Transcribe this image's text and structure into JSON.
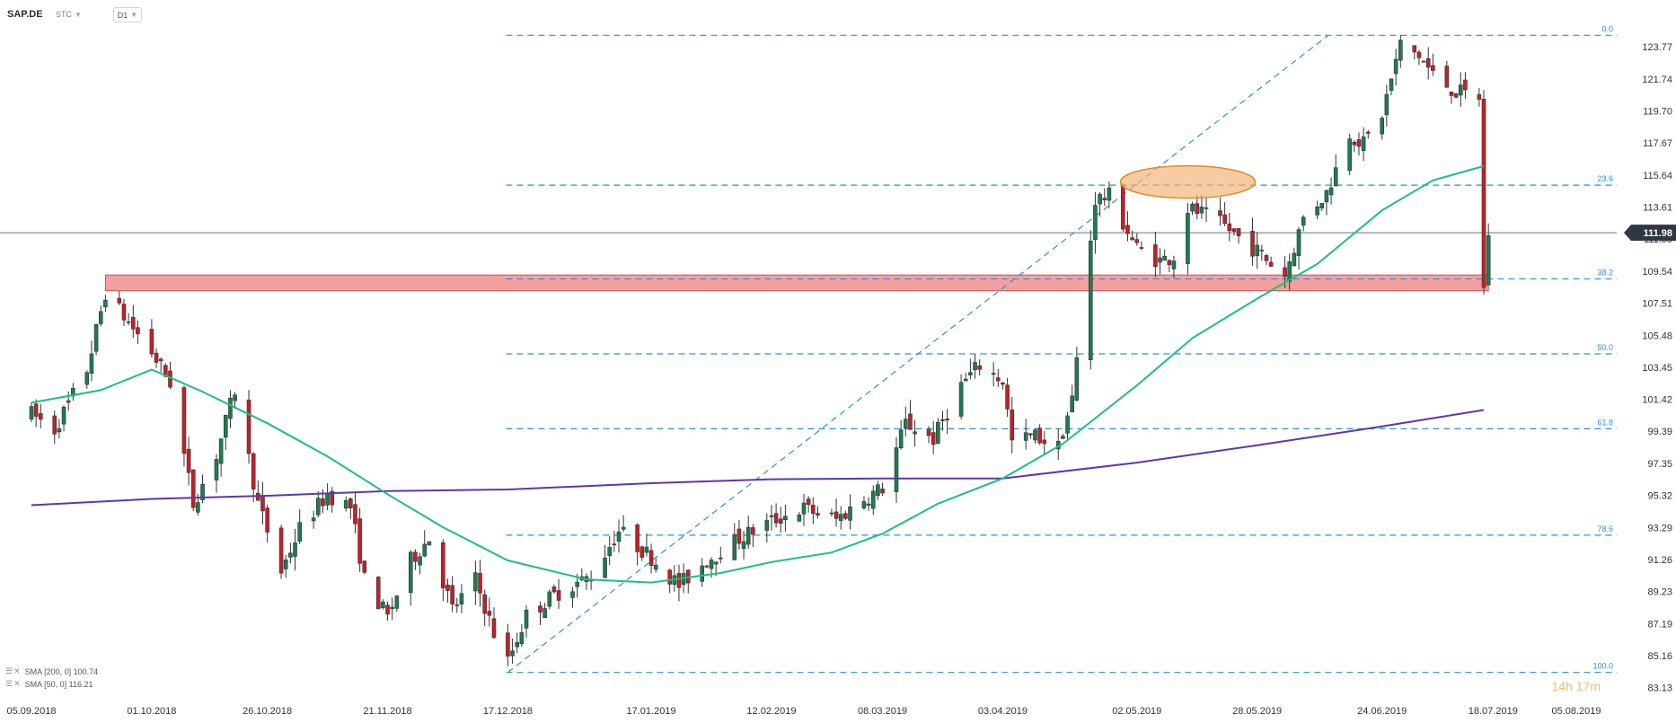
{
  "header": {
    "symbol": "SAP.DE",
    "exchange": "STC",
    "timeframe": "D1"
  },
  "indicators": [
    {
      "label": "SMA [200, 0] 100.74",
      "color": "#5e35b1"
    },
    {
      "label": "SMA [50, 0] 116.21",
      "color": "#1bbf82"
    }
  ],
  "watermark": "14h 17m",
  "colors": {
    "up": "#1e7b52",
    "down": "#c0212a",
    "fib": "#2d8fe0",
    "zone": "#f08080",
    "ellipse": "#f5b070",
    "price_line": "#6b7280",
    "last_price_bg": "#2f3842"
  },
  "chart_data": {
    "type": "candlestick",
    "instrument": "SAP.DE",
    "timeframe": "D1",
    "y_ticks": [
      "123.77",
      "121.74",
      "119.70",
      "117.67",
      "115.64",
      "113.61",
      "111.58",
      "109.54",
      "107.51",
      "105.48",
      "103.45",
      "101.42",
      "99.39",
      "97.35",
      "95.32",
      "93.29",
      "91.26",
      "89.23",
      "87.19",
      "85.16",
      "83.13"
    ],
    "ylim": [
      82.6,
      125.6
    ],
    "x_ticks": [
      "05.09.2018",
      "01.10.2018",
      "26.10.2018",
      "21.11.2018",
      "17.12.2018",
      "17.01.2019",
      "12.02.2019",
      "08.03.2019",
      "03.04.2019",
      "02.05.2019",
      "28.05.2019",
      "24.06.2019",
      "18.07.2019",
      "05.08.2019"
    ],
    "last_price": 111.98,
    "fib_levels": [
      {
        "label": "0.0",
        "value": 124.5
      },
      {
        "label": "23.6",
        "value": 115.0
      },
      {
        "label": "38.2",
        "value": 109.05
      },
      {
        "label": "50.0",
        "value": 104.3
      },
      {
        "label": "61.8",
        "value": 99.55
      },
      {
        "label": "78.6",
        "value": 92.8
      },
      {
        "label": "100.0",
        "value": 84.1
      }
    ],
    "fib_swing": {
      "from_date": "17.12.2018",
      "from": 84.1,
      "to_date": "24.06.2019",
      "to": 124.5
    },
    "support_zone": {
      "from_date": "21.09.2018",
      "to_date": "17.07.2019",
      "low": 108.3,
      "high": 109.3
    },
    "highlight": {
      "center_date": "13.05.2019",
      "center_value": 115.2
    },
    "sma200": [
      {
        "date": "05.09.2018",
        "value": 94.7
      },
      {
        "date": "01.10.2018",
        "value": 95.1
      },
      {
        "date": "26.10.2018",
        "value": 95.3
      },
      {
        "date": "21.11.2018",
        "value": 95.6
      },
      {
        "date": "17.12.2018",
        "value": 95.7
      },
      {
        "date": "17.01.2019",
        "value": 96.1
      },
      {
        "date": "12.02.2019",
        "value": 96.35
      },
      {
        "date": "08.03.2019",
        "value": 96.4
      },
      {
        "date": "03.04.2019",
        "value": 96.4
      },
      {
        "date": "02.05.2019",
        "value": 97.4
      },
      {
        "date": "28.05.2019",
        "value": 98.5
      },
      {
        "date": "24.06.2019",
        "value": 99.7
      },
      {
        "date": "16.07.2019",
        "value": 100.74
      }
    ],
    "sma50": [
      {
        "date": "05.09.2018",
        "value": 101.2
      },
      {
        "date": "20.09.2018",
        "value": 102.0
      },
      {
        "date": "01.10.2018",
        "value": 103.3
      },
      {
        "date": "12.10.2018",
        "value": 101.9
      },
      {
        "date": "26.10.2018",
        "value": 99.9
      },
      {
        "date": "08.11.2018",
        "value": 97.8
      },
      {
        "date": "21.11.2018",
        "value": 95.4
      },
      {
        "date": "03.12.2018",
        "value": 93.3
      },
      {
        "date": "17.12.2018",
        "value": 91.2
      },
      {
        "date": "03.01.2019",
        "value": 90.0
      },
      {
        "date": "17.01.2019",
        "value": 89.8
      },
      {
        "date": "01.02.2019",
        "value": 90.4
      },
      {
        "date": "12.02.2019",
        "value": 91.1
      },
      {
        "date": "25.02.2019",
        "value": 91.7
      },
      {
        "date": "08.03.2019",
        "value": 92.9
      },
      {
        "date": "20.03.2019",
        "value": 94.8
      },
      {
        "date": "03.04.2019",
        "value": 96.4
      },
      {
        "date": "16.04.2019",
        "value": 98.6
      },
      {
        "date": "02.05.2019",
        "value": 102.3
      },
      {
        "date": "14.05.2019",
        "value": 105.3
      },
      {
        "date": "28.05.2019",
        "value": 107.8
      },
      {
        "date": "10.06.2019",
        "value": 110.0
      },
      {
        "date": "24.06.2019",
        "value": 113.4
      },
      {
        "date": "05.07.2019",
        "value": 115.3
      },
      {
        "date": "16.07.2019",
        "value": 116.21
      }
    ],
    "price_path": [
      {
        "date": "05.09.2018",
        "value": 100.5
      },
      {
        "date": "10.09.2018",
        "value": 99.5
      },
      {
        "date": "17.09.2018",
        "value": 103.3
      },
      {
        "date": "21.09.2018",
        "value": 108.2
      },
      {
        "date": "26.09.2018",
        "value": 106.3
      },
      {
        "date": "01.10.2018",
        "value": 104.4
      },
      {
        "date": "05.10.2018",
        "value": 102.5
      },
      {
        "date": "10.10.2018",
        "value": 94.8
      },
      {
        "date": "15.10.2018",
        "value": 97.9
      },
      {
        "date": "19.10.2018",
        "value": 102.0
      },
      {
        "date": "24.10.2018",
        "value": 94.8
      },
      {
        "date": "29.10.2018",
        "value": 90.5
      },
      {
        "date": "02.11.2018",
        "value": 93.2
      },
      {
        "date": "08.11.2018",
        "value": 95.4
      },
      {
        "date": "13.11.2018",
        "value": 94.6
      },
      {
        "date": "16.11.2018",
        "value": 90.0
      },
      {
        "date": "21.11.2018",
        "value": 87.6
      },
      {
        "date": "26.11.2018",
        "value": 91.2
      },
      {
        "date": "30.11.2018",
        "value": 92.6
      },
      {
        "date": "05.12.2018",
        "value": 88.1
      },
      {
        "date": "10.12.2018",
        "value": 90.0
      },
      {
        "date": "14.12.2018",
        "value": 86.6
      },
      {
        "date": "17.12.2018",
        "value": 84.8
      },
      {
        "date": "21.12.2018",
        "value": 87.7
      },
      {
        "date": "28.12.2018",
        "value": 89.2
      },
      {
        "date": "04.01.2019",
        "value": 90.2
      },
      {
        "date": "10.01.2019",
        "value": 93.1
      },
      {
        "date": "17.01.2019",
        "value": 91.4
      },
      {
        "date": "23.01.2019",
        "value": 89.6
      },
      {
        "date": "29.01.2019",
        "value": 91.2
      },
      {
        "date": "05.02.2019",
        "value": 92.6
      },
      {
        "date": "12.02.2019",
        "value": 93.7
      },
      {
        "date": "19.02.2019",
        "value": 94.5
      },
      {
        "date": "26.02.2019",
        "value": 93.8
      },
      {
        "date": "04.03.2019",
        "value": 95.1
      },
      {
        "date": "08.03.2019",
        "value": 95.8
      },
      {
        "date": "13.03.2019",
        "value": 99.9
      },
      {
        "date": "19.03.2019",
        "value": 98.9
      },
      {
        "date": "25.03.2019",
        "value": 102.3
      },
      {
        "date": "29.03.2019",
        "value": 103.6
      },
      {
        "date": "03.04.2019",
        "value": 102.6
      },
      {
        "date": "05.04.2019",
        "value": 98.7
      },
      {
        "date": "10.04.2019",
        "value": 99.1
      },
      {
        "date": "15.04.2019",
        "value": 98.4
      },
      {
        "date": "18.04.2019",
        "value": 101.4
      },
      {
        "date": "23.04.2019",
        "value": 114.1
      },
      {
        "date": "26.04.2019",
        "value": 114.3
      },
      {
        "date": "02.05.2019",
        "value": 111.0
      },
      {
        "date": "07.05.2019",
        "value": 110.2
      },
      {
        "date": "10.05.2019",
        "value": 110.5
      },
      {
        "date": "13.05.2019",
        "value": 113.5
      },
      {
        "date": "16.05.2019",
        "value": 113.2
      },
      {
        "date": "21.05.2019",
        "value": 112.4
      },
      {
        "date": "28.05.2019",
        "value": 110.8
      },
      {
        "date": "03.06.2019",
        "value": 109.3
      },
      {
        "date": "07.06.2019",
        "value": 112.9
      },
      {
        "date": "12.06.2019",
        "value": 114.5
      },
      {
        "date": "17.06.2019",
        "value": 118.3
      },
      {
        "date": "20.06.2019",
        "value": 117.6
      },
      {
        "date": "24.06.2019",
        "value": 119.5
      },
      {
        "date": "28.06.2019",
        "value": 123.9
      },
      {
        "date": "02.07.2019",
        "value": 123.2
      },
      {
        "date": "05.07.2019",
        "value": 122.0
      },
      {
        "date": "10.07.2019",
        "value": 120.9
      },
      {
        "date": "15.07.2019",
        "value": 120.6
      },
      {
        "date": "16.07.2019",
        "value": 108.4
      },
      {
        "date": "17.07.2019",
        "value": 111.98
      }
    ]
  }
}
